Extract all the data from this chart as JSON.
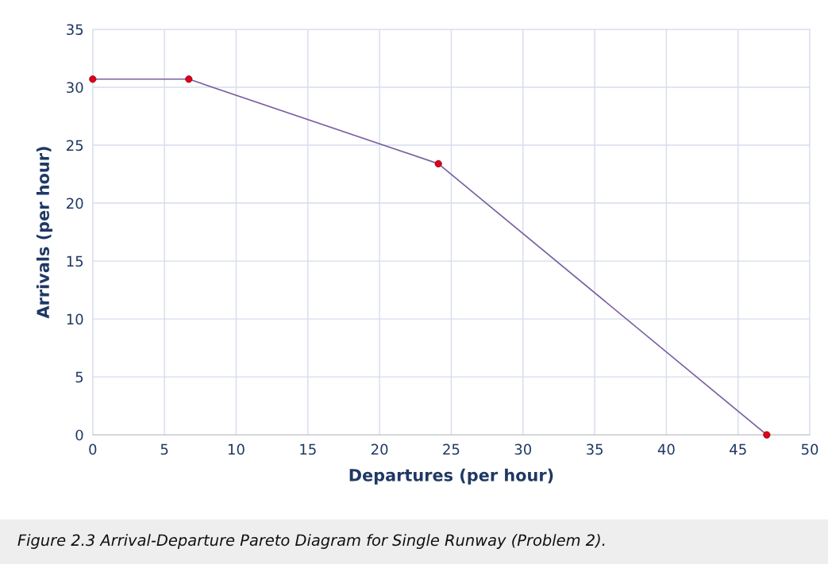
{
  "chart_data": {
    "type": "line",
    "xlabel": "Departures (per hour)",
    "ylabel": "Arrivals (per hour)",
    "x": [
      0,
      6.7,
      24.1,
      47
    ],
    "series": [
      {
        "color": "#7a5fa0",
        "values": [
          30.7,
          30.7,
          23.4,
          0
        ]
      }
    ],
    "marker": "circle",
    "line_style": "solid",
    "grid": true,
    "legend": false,
    "xlim": [
      0,
      50
    ],
    "xticks": [
      0,
      5,
      10,
      15,
      20,
      25,
      30,
      35,
      40,
      45,
      50
    ],
    "ylim": [
      0,
      35
    ],
    "yticks": [
      0,
      5,
      10,
      15,
      20,
      25,
      30,
      35
    ],
    "annotations": [
      "Figure 2.3 Arrival-Departure Pareto Diagram for Single Runway (Problem 2)."
    ]
  }
}
